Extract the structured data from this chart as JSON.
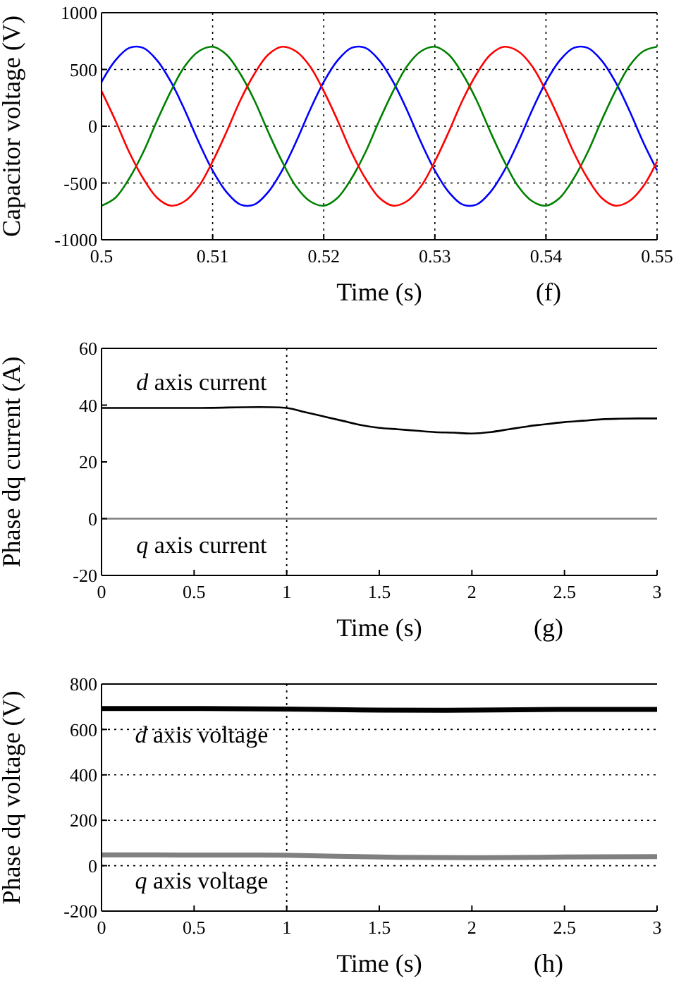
{
  "chart_data": [
    {
      "type": "line",
      "xlabel": "Time (s)",
      "ylabel": "Capacitor voltage (V)",
      "annotations": [
        "(f)"
      ],
      "grid": true,
      "xlim": [
        0.5,
        0.55
      ],
      "xticks": [
        0.5,
        0.51,
        0.52,
        0.53,
        0.54,
        0.55
      ],
      "ylim": [
        -1000,
        1000
      ],
      "yticks": [
        -1000,
        -500,
        0,
        500,
        1000
      ],
      "x": [
        0.5,
        0.50125,
        0.5025,
        0.50375,
        0.505,
        0.50625,
        0.5075,
        0.50875,
        0.51,
        0.51125,
        0.5125,
        0.51375,
        0.515,
        0.51625,
        0.5175,
        0.51875,
        0.52,
        0.52125,
        0.5225,
        0.52375,
        0.525,
        0.52625,
        0.5275,
        0.52875,
        0.53,
        0.53125,
        0.5325,
        0.53375,
        0.535,
        0.53625,
        0.5375,
        0.53875,
        0.54,
        0.54125,
        0.5425,
        0.54375,
        0.545,
        0.54625,
        0.5475,
        0.54875,
        0.55
      ],
      "series": [
        {
          "color": "#0000ff",
          "values": [
            390,
            580,
            690,
            690,
            580,
            390,
            140,
            -140,
            -390,
            -580,
            -690,
            -690,
            -580,
            -390,
            -140,
            140,
            390,
            580,
            690,
            690,
            580,
            390,
            140,
            -140,
            -390,
            -580,
            -690,
            -690,
            -580,
            -390,
            -140,
            140,
            390,
            580,
            690,
            690,
            580,
            390,
            140,
            -140,
            -390
          ]
        },
        {
          "color": "#008000",
          "values": [
            -700,
            -630,
            -460,
            -230,
            50,
            310,
            530,
            660,
            700,
            630,
            460,
            230,
            -50,
            -310,
            -530,
            -660,
            -700,
            -630,
            -460,
            -230,
            50,
            310,
            530,
            660,
            700,
            630,
            460,
            230,
            -50,
            -310,
            -530,
            -660,
            -700,
            -630,
            -460,
            -230,
            50,
            310,
            530,
            660,
            700
          ]
        },
        {
          "color": "#ff0000",
          "values": [
            310,
            50,
            -230,
            -460,
            -630,
            -700,
            -660,
            -530,
            -310,
            -50,
            230,
            460,
            630,
            700,
            660,
            530,
            310,
            50,
            -230,
            -460,
            -630,
            -700,
            -660,
            -530,
            -310,
            -50,
            230,
            460,
            630,
            700,
            660,
            530,
            310,
            50,
            -230,
            -460,
            -630,
            -700,
            -660,
            -530,
            -310
          ]
        }
      ]
    },
    {
      "type": "line",
      "xlabel": "Time (s)",
      "ylabel": "Phase dq current (A)",
      "annotations": [
        "(g)"
      ],
      "xlim": [
        0,
        3
      ],
      "xticks": [
        0,
        0.5,
        1,
        1.5,
        2,
        2.5,
        3
      ],
      "ylim": [
        -20,
        60
      ],
      "yticks": [
        -20,
        0,
        20,
        40,
        60
      ],
      "ref_lines": [
        {
          "axis": "x",
          "value": 1,
          "color": "#000000",
          "line_style": "dotted"
        }
      ],
      "x": [
        0,
        0.5,
        1,
        1.1,
        1.2,
        1.3,
        1.4,
        1.5,
        1.6,
        1.7,
        1.8,
        1.9,
        2,
        2.1,
        2.2,
        2.3,
        2.4,
        2.5,
        2.6,
        2.7,
        2.8,
        2.9,
        3
      ],
      "series": [
        {
          "name": "d axis current",
          "color": "#000000",
          "values": [
            39,
            39,
            39,
            37.5,
            36,
            34.5,
            33,
            32,
            31.5,
            31,
            30.5,
            30.3,
            30,
            30.5,
            31.5,
            32.5,
            33.3,
            34,
            34.5,
            35,
            35.2,
            35.3,
            35.3
          ]
        },
        {
          "name": "q axis current",
          "color": "#808080",
          "values": [
            0,
            0,
            0,
            0,
            0,
            0,
            0,
            0,
            0,
            0,
            0,
            0,
            0,
            0,
            0,
            0,
            0,
            0,
            0,
            0,
            0,
            0,
            0
          ]
        }
      ]
    },
    {
      "type": "line",
      "xlabel": "Time (s)",
      "ylabel": "Phase dq voltage (V)",
      "annotations": [
        "(h)"
      ],
      "grid": "y",
      "xlim": [
        0,
        3
      ],
      "xticks": [
        0,
        0.5,
        1,
        1.5,
        2,
        2.5,
        3
      ],
      "ylim": [
        -200,
        800
      ],
      "yticks": [
        -200,
        0,
        200,
        400,
        600,
        800
      ],
      "ref_lines": [
        {
          "axis": "x",
          "value": 1,
          "color": "#000000",
          "line_style": "dotted"
        }
      ],
      "x": [
        0,
        0.5,
        1,
        1.5,
        2,
        2.5,
        3
      ],
      "series": [
        {
          "name": "d axis voltage",
          "color": "#000000",
          "values": [
            692,
            692,
            690,
            685,
            685,
            688,
            688
          ]
        },
        {
          "name": "q axis voltage",
          "color": "#808080",
          "values": [
            48,
            47,
            46,
            38,
            35,
            38,
            40
          ]
        }
      ]
    }
  ]
}
